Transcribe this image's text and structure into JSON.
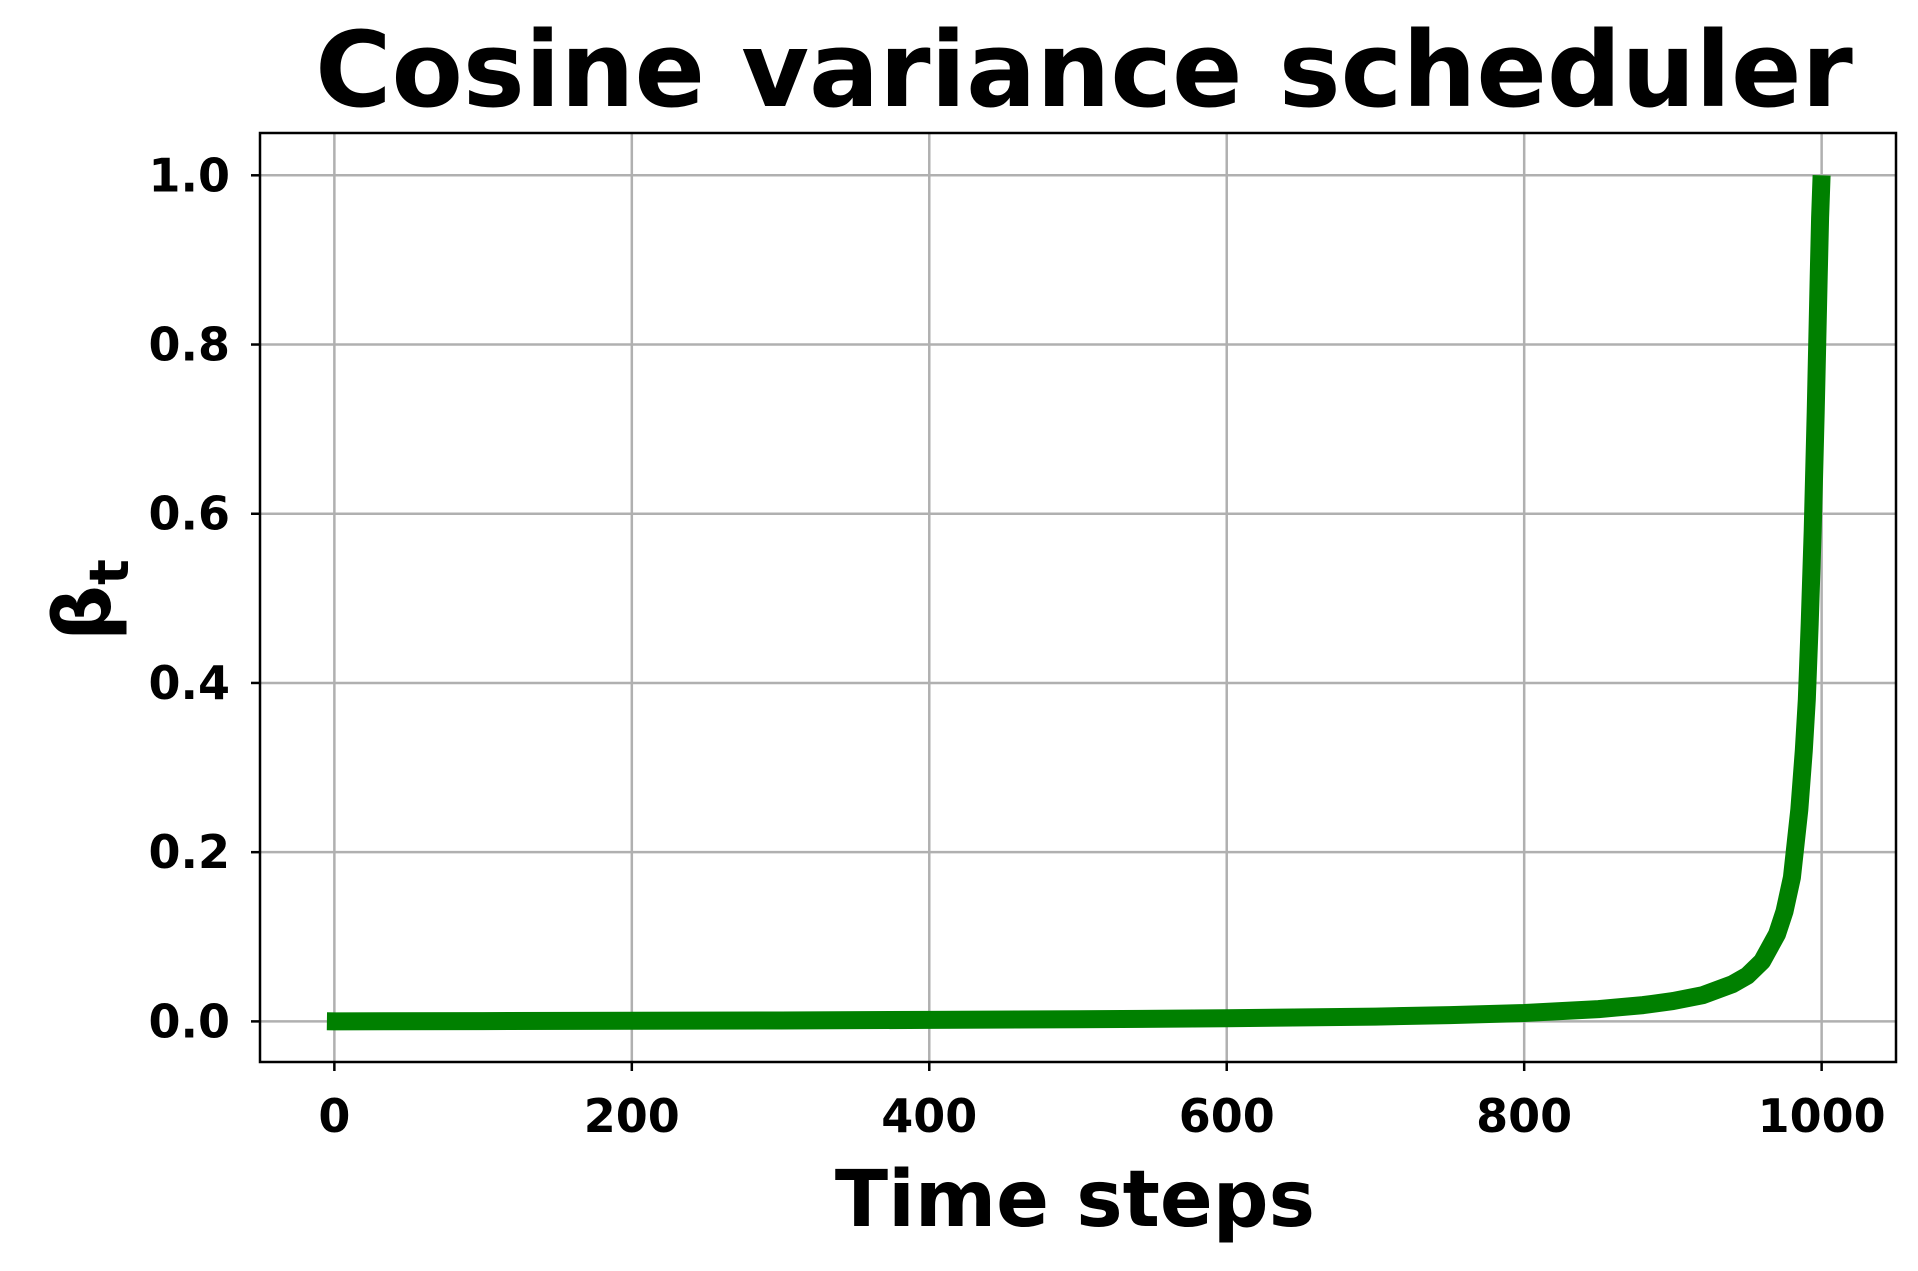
{
  "chart_data": {
    "type": "line",
    "title": "Cosine variance scheduler",
    "xlabel": "Time steps",
    "ylabel": "βt",
    "ylabel_main": "β",
    "ylabel_sub": "t",
    "xlim": [
      -50,
      1050
    ],
    "ylim": [
      -0.048,
      1.05
    ],
    "xticks": [
      0,
      200,
      400,
      600,
      800,
      1000
    ],
    "xtick_labels": [
      "0",
      "200",
      "400",
      "600",
      "800",
      "1000"
    ],
    "yticks": [
      0.0,
      0.2,
      0.4,
      0.6,
      0.8,
      1.0
    ],
    "ytick_labels": [
      "0.0",
      "0.2",
      "0.4",
      "0.6",
      "0.8",
      "1.0"
    ],
    "grid": true,
    "legend": "none",
    "series": [
      {
        "color": "#008000",
        "x": [
          -5,
          0,
          100,
          200,
          300,
          400,
          500,
          600,
          700,
          750,
          800,
          850,
          880,
          900,
          920,
          940,
          950,
          960,
          970,
          975,
          980,
          985,
          988,
          990,
          992,
          994,
          995,
          996,
          997,
          998,
          999,
          1000
        ],
        "y": [
          0.0001,
          4e-05,
          0.0003,
          0.0007,
          0.0011,
          0.0017,
          0.0025,
          0.0037,
          0.0057,
          0.0074,
          0.0099,
          0.0145,
          0.0193,
          0.024,
          0.031,
          0.044,
          0.054,
          0.071,
          0.103,
          0.13,
          0.17,
          0.25,
          0.32,
          0.38,
          0.47,
          0.58,
          0.65,
          0.72,
          0.8,
          0.88,
          0.95,
          1.0
        ]
      }
    ]
  }
}
